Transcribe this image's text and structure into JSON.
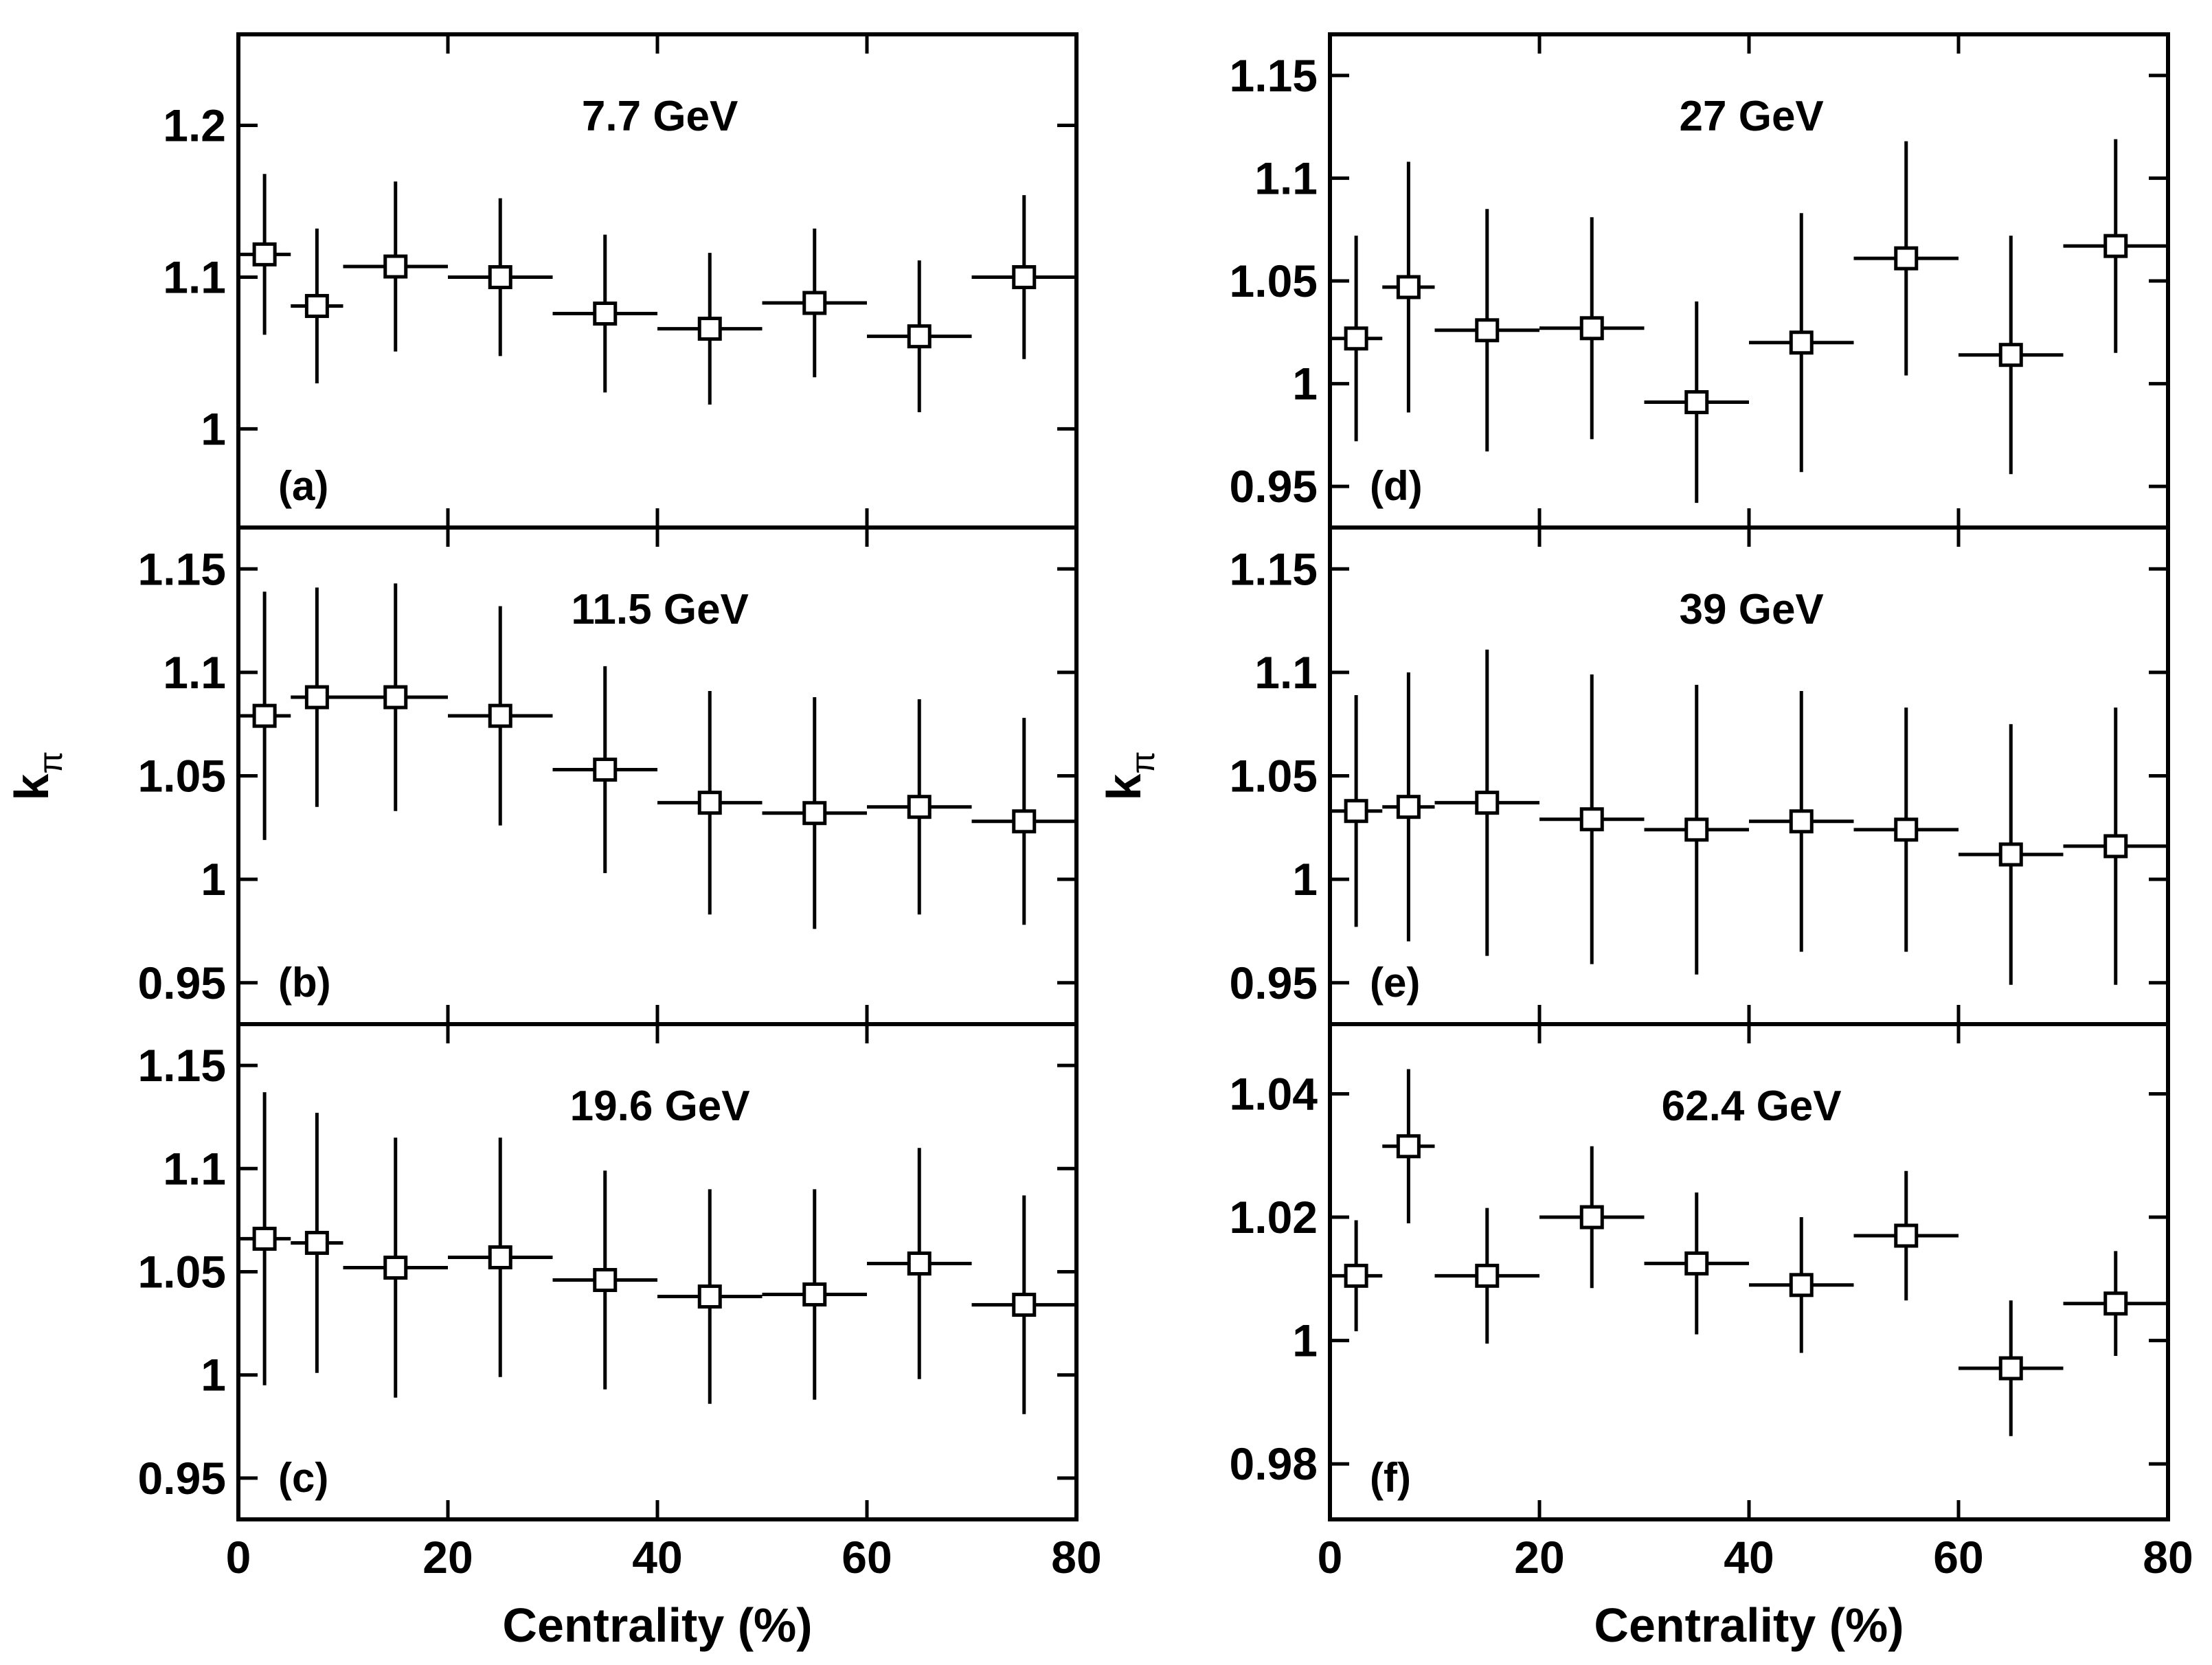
{
  "chart_data": [
    {
      "type": "scatter",
      "panel": "(a)",
      "title": "7.7 GeV",
      "xlabel": "Centrality (%)",
      "ylabel": "kπ",
      "xlim": [
        0,
        80
      ],
      "ylim": [
        0.935,
        1.26
      ],
      "yticks": [
        1,
        1.1,
        1.2
      ],
      "ytick_labels": [
        "1",
        "1.1",
        "1.2"
      ],
      "xticks": [
        0,
        20,
        40,
        60,
        80
      ],
      "xtick_labels": [
        "0",
        "20",
        "40",
        "60",
        "80"
      ],
      "x": [
        2.5,
        7.5,
        15,
        25,
        35,
        45,
        55,
        65,
        75
      ],
      "x_half_width": [
        2.5,
        2.5,
        5,
        5,
        5,
        5,
        5,
        5,
        5
      ],
      "y": [
        1.115,
        1.081,
        1.107,
        1.1,
        1.076,
        1.066,
        1.083,
        1.061,
        1.1
      ],
      "y_err": [
        0.053,
        0.051,
        0.056,
        0.052,
        0.052,
        0.05,
        0.049,
        0.05,
        0.054
      ]
    },
    {
      "type": "scatter",
      "panel": "(b)",
      "title": "11.5 GeV",
      "xlabel": "Centrality (%)",
      "ylabel": "kπ",
      "xlim": [
        0,
        80
      ],
      "ylim": [
        0.93,
        1.17
      ],
      "yticks": [
        0.95,
        1,
        1.05,
        1.1,
        1.15
      ],
      "ytick_labels": [
        "0.95",
        "1",
        "1.05",
        "1.1",
        "1.15"
      ],
      "xticks": [
        0,
        20,
        40,
        60,
        80
      ],
      "xtick_labels": [
        "0",
        "20",
        "40",
        "60",
        "80"
      ],
      "x": [
        2.5,
        7.5,
        15,
        25,
        35,
        45,
        55,
        65,
        75
      ],
      "x_half_width": [
        2.5,
        2.5,
        5,
        5,
        5,
        5,
        5,
        5,
        5
      ],
      "y": [
        1.079,
        1.088,
        1.088,
        1.079,
        1.053,
        1.037,
        1.032,
        1.035,
        1.028
      ],
      "y_err": [
        0.06,
        0.053,
        0.055,
        0.053,
        0.05,
        0.054,
        0.056,
        0.052,
        0.05
      ]
    },
    {
      "type": "scatter",
      "panel": "(c)",
      "title": "19.6 GeV",
      "xlabel": "Centrality (%)",
      "ylabel": "kπ",
      "xlim": [
        0,
        80
      ],
      "ylim": [
        0.93,
        1.17
      ],
      "yticks": [
        0.95,
        1,
        1.05,
        1.1,
        1.15
      ],
      "ytick_labels": [
        "0.95",
        "1",
        "1.05",
        "1.1",
        "1.15"
      ],
      "xticks": [
        0,
        20,
        40,
        60,
        80
      ],
      "xtick_labels": [
        "0",
        "20",
        "40",
        "60",
        "80"
      ],
      "x": [
        2.5,
        7.5,
        15,
        25,
        35,
        45,
        55,
        65,
        75
      ],
      "x_half_width": [
        2.5,
        2.5,
        5,
        5,
        5,
        5,
        5,
        5,
        5
      ],
      "y": [
        1.066,
        1.064,
        1.052,
        1.057,
        1.046,
        1.038,
        1.039,
        1.054,
        1.034
      ],
      "y_err": [
        0.071,
        0.063,
        0.063,
        0.058,
        0.053,
        0.052,
        0.051,
        0.056,
        0.053
      ]
    },
    {
      "type": "scatter",
      "panel": "(d)",
      "title": "27 GeV",
      "xlabel": "Centrality (%)",
      "ylabel": "kπ",
      "xlim": [
        0,
        80
      ],
      "ylim": [
        0.93,
        1.17
      ],
      "yticks": [
        0.95,
        1,
        1.05,
        1.1,
        1.15
      ],
      "ytick_labels": [
        "0.95",
        "1",
        "1.05",
        "1.1",
        "1.15"
      ],
      "xticks": [
        0,
        20,
        40,
        60,
        80
      ],
      "xtick_labels": [
        "0",
        "20",
        "40",
        "60",
        "80"
      ],
      "x": [
        2.5,
        7.5,
        15,
        25,
        35,
        45,
        55,
        65,
        75
      ],
      "x_half_width": [
        2.5,
        2.5,
        5,
        5,
        5,
        5,
        5,
        5,
        5
      ],
      "y": [
        1.022,
        1.047,
        1.026,
        1.027,
        0.991,
        1.02,
        1.061,
        1.014,
        1.067
      ],
      "y_err": [
        0.05,
        0.061,
        0.059,
        0.054,
        0.049,
        0.063,
        0.057,
        0.058,
        0.052
      ]
    },
    {
      "type": "scatter",
      "panel": "(e)",
      "title": "39 GeV",
      "xlabel": "Centrality (%)",
      "ylabel": "kπ",
      "xlim": [
        0,
        80
      ],
      "ylim": [
        0.93,
        1.17
      ],
      "yticks": [
        0.95,
        1,
        1.05,
        1.1,
        1.15
      ],
      "ytick_labels": [
        "0.95",
        "1",
        "1.05",
        "1.1",
        "1.15"
      ],
      "xticks": [
        0,
        20,
        40,
        60,
        80
      ],
      "xtick_labels": [
        "0",
        "20",
        "40",
        "60",
        "80"
      ],
      "x": [
        2.5,
        7.5,
        15,
        25,
        35,
        45,
        55,
        65,
        75
      ],
      "x_half_width": [
        2.5,
        2.5,
        5,
        5,
        5,
        5,
        5,
        5,
        5
      ],
      "y": [
        1.033,
        1.035,
        1.037,
        1.029,
        1.024,
        1.028,
        1.024,
        1.012,
        1.016
      ],
      "y_err": [
        0.056,
        0.065,
        0.074,
        0.07,
        0.07,
        0.063,
        0.059,
        0.063,
        0.067
      ]
    },
    {
      "type": "scatter",
      "panel": "(f)",
      "title": "62.4 GeV",
      "xlabel": "Centrality (%)",
      "ylabel": "kπ",
      "xlim": [
        0,
        80
      ],
      "ylim": [
        0.971,
        1.0513
      ],
      "yticks": [
        0.98,
        1,
        1.02,
        1.04
      ],
      "ytick_labels": [
        "0.98",
        "1",
        "1.02",
        "1.04"
      ],
      "xticks": [
        0,
        20,
        40,
        60,
        80
      ],
      "xtick_labels": [
        "0",
        "20",
        "40",
        "60",
        "80"
      ],
      "x": [
        2.5,
        7.5,
        15,
        25,
        35,
        45,
        55,
        65,
        75
      ],
      "x_half_width": [
        2.5,
        2.5,
        5,
        5,
        5,
        5,
        5,
        5,
        5
      ],
      "y": [
        1.0105,
        1.0315,
        1.0105,
        1.02,
        1.0125,
        1.009,
        1.017,
        0.9955,
        1.006
      ],
      "y_err": [
        0.009,
        0.0125,
        0.011,
        0.0115,
        0.0115,
        0.011,
        0.0105,
        0.011,
        0.0085
      ]
    }
  ]
}
